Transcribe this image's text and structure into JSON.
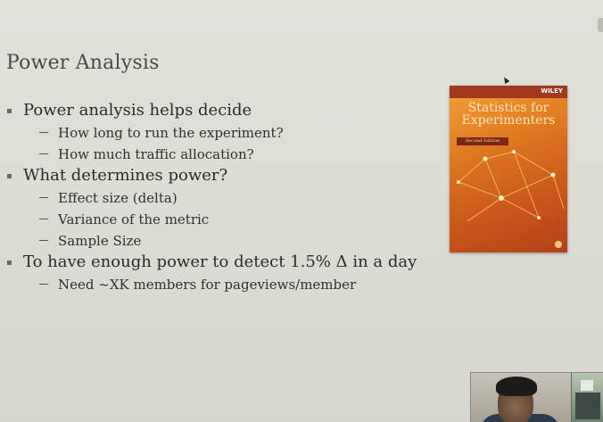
{
  "slide": {
    "title": "Power Analysis",
    "bullets": [
      {
        "text": "Power analysis helps decide",
        "sub": [
          "How long to run the experiment?",
          "How much traffic allocation?"
        ]
      },
      {
        "text": "What determines power?",
        "sub": [
          "Effect size (delta)",
          "Variance of the metric",
          "Sample Size"
        ]
      },
      {
        "text": "To have enough power to detect 1.5% Δ in a day",
        "sub": [
          "Need ~XK members for pageviews/member"
        ]
      }
    ]
  },
  "book": {
    "publisher": "WILEY",
    "title_line1": "Statistics for",
    "title_line2": "Experimenters",
    "edition": "Second Edition"
  },
  "colors": {
    "background": "#dedbd6",
    "book_orange": "#e07a20"
  }
}
